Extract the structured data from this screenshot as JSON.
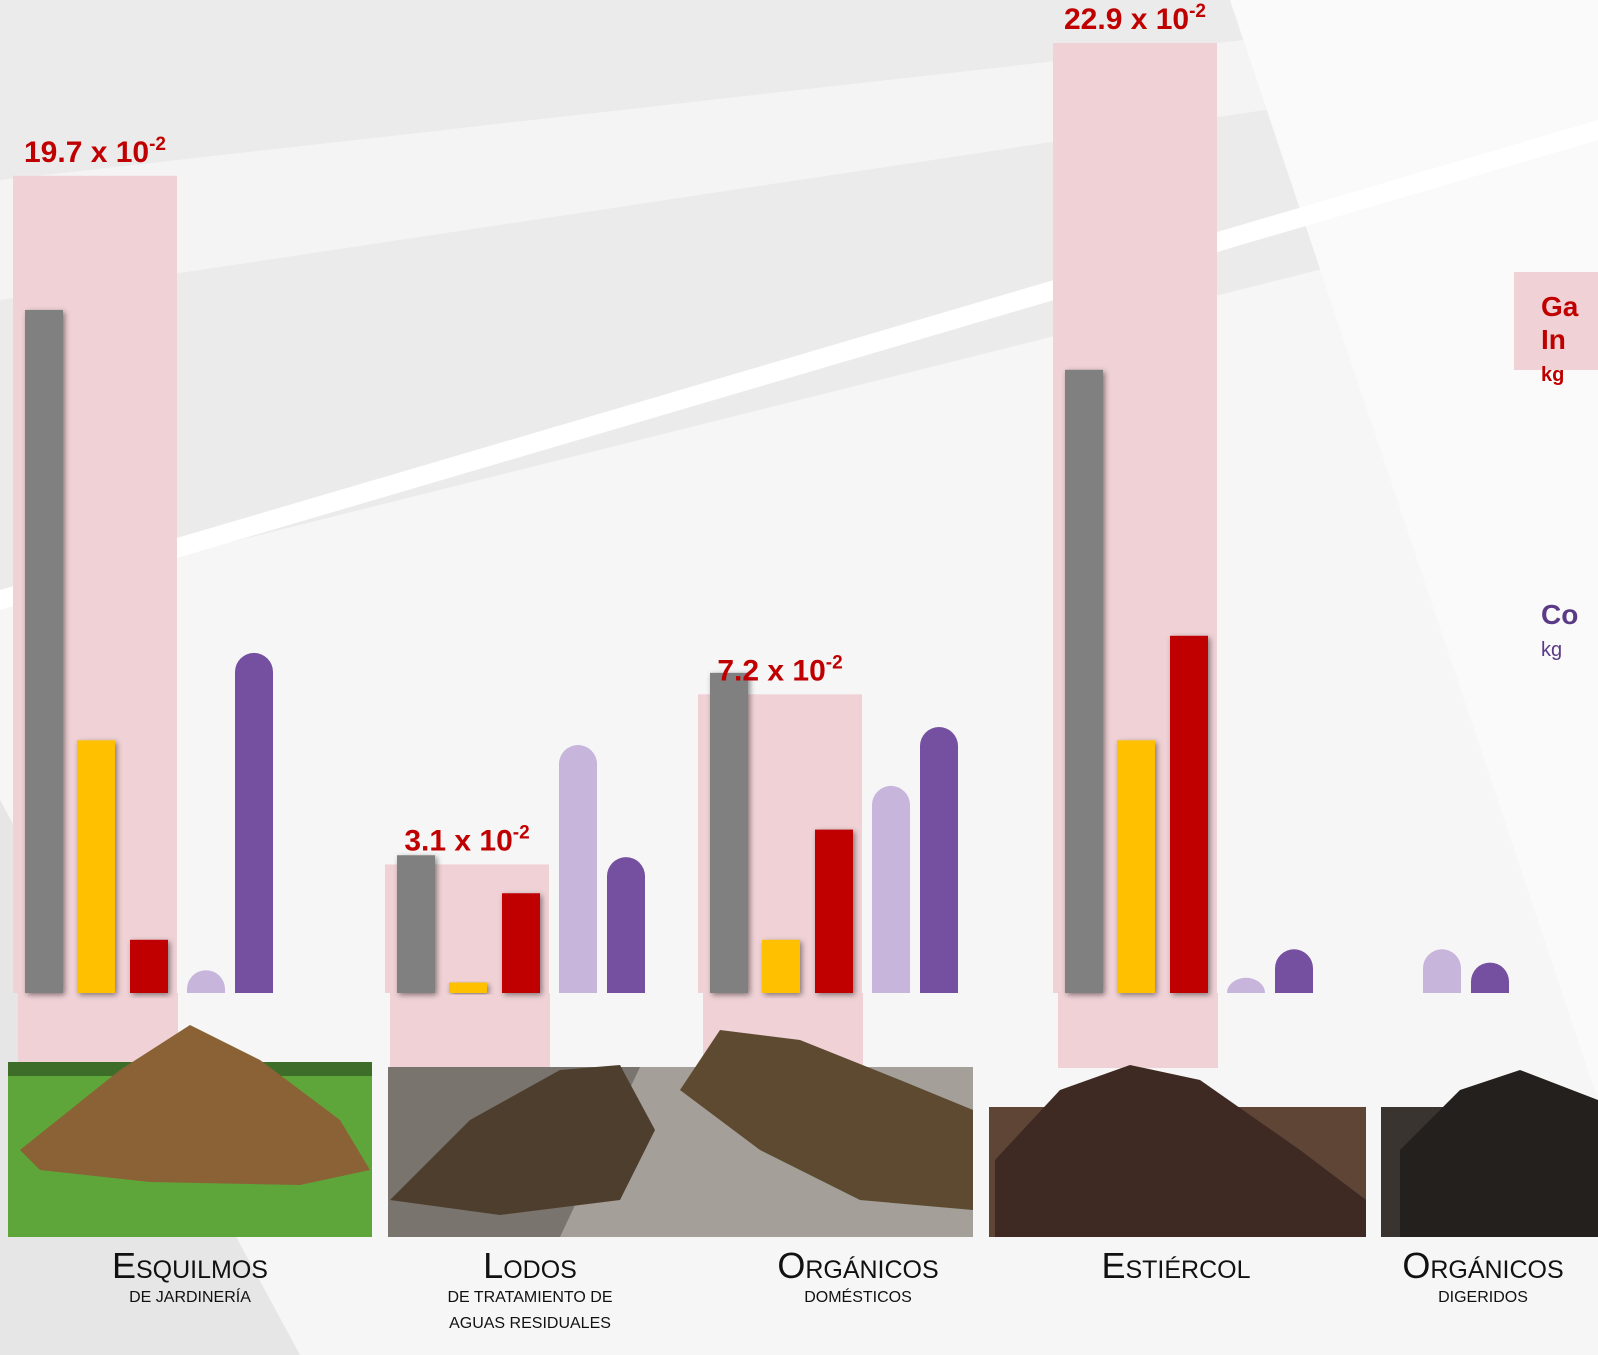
{
  "chart_data": {
    "type": "bar",
    "categories": [
      "Esquilmos",
      "Lodos",
      "Orgánicos",
      "Estiércol",
      "Orgánicos"
    ],
    "subtitles": [
      [
        "de jardinería"
      ],
      [
        "de tratamiento de",
        "aguas residuales"
      ],
      [
        "domésticos"
      ],
      null,
      [
        "digeridos"
      ]
    ],
    "highlight_values": [
      19.7,
      3.1,
      7.2,
      22.9,
      null
    ],
    "highlight_labels": [
      "19.7 x 10",
      "3.1 x 10",
      "7.2 x 10",
      "22.9 x 10",
      null
    ],
    "highlight_exponent": "-2",
    "highlight_color": "#f0d2d6",
    "ylim": [
      0,
      100
    ],
    "series": [
      {
        "color": "#808080",
        "values": [
          71.9,
          14.5,
          33.7,
          65.6,
          null
        ]
      },
      {
        "color": "#ffc000",
        "values": [
          26.6,
          1.1,
          5.6,
          26.6,
          null
        ]
      },
      {
        "color": "#c00000",
        "values": [
          5.6,
          10.5,
          17.2,
          37.6,
          null
        ]
      },
      {
        "color": "#c7b5dc",
        "rounded": true,
        "values": [
          2.4,
          26.1,
          21.8,
          1.6,
          4.6
        ]
      },
      {
        "color": "#7550a0",
        "rounded": true,
        "values": [
          35.8,
          14.3,
          28.0,
          4.6,
          3.2
        ]
      }
    ],
    "legend": [
      {
        "lines": [
          "Ga",
          "In"
        ],
        "unit": "kg",
        "color": "#c00000",
        "box": "#f0d2d6"
      },
      {
        "lines": [
          "Co"
        ],
        "unit": "kg",
        "color": "#5b3a86"
      }
    ]
  }
}
